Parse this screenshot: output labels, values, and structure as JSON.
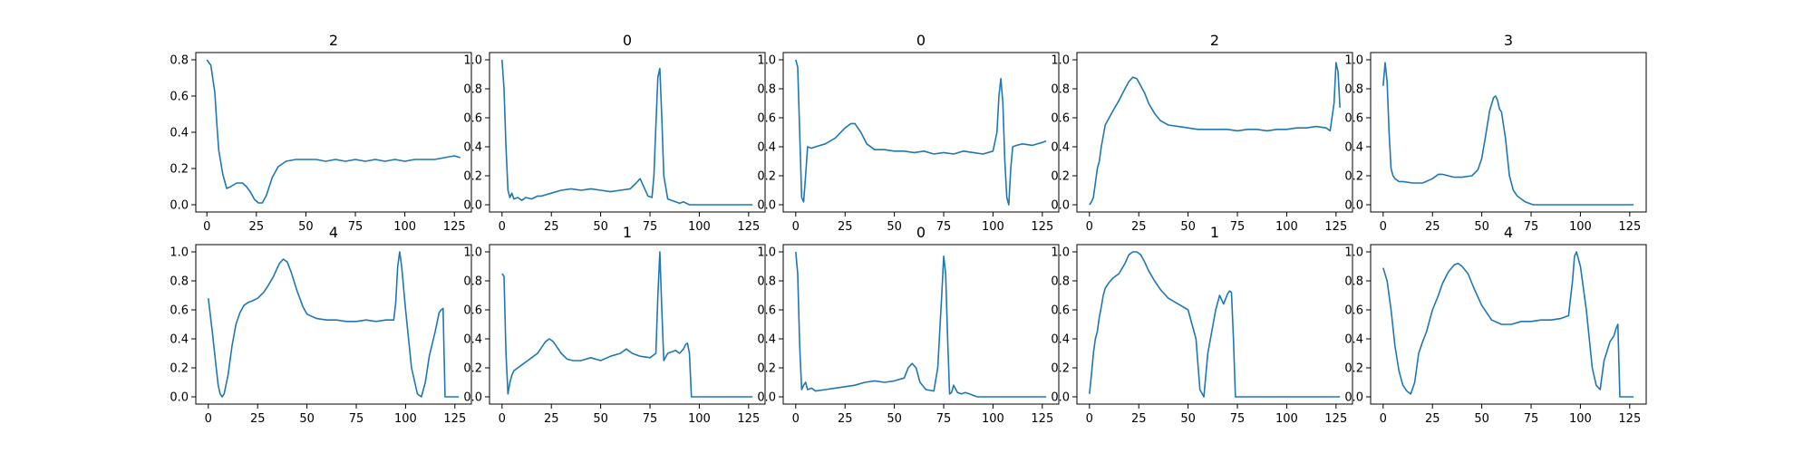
{
  "colors": {
    "line": "#1f77b4",
    "axes": "#000000",
    "background": "#ffffff"
  },
  "chart_data": [
    {
      "type": "line",
      "title": "2",
      "xlim": [
        -5.6,
        133.6
      ],
      "ylim": [
        -0.04,
        0.84
      ],
      "xticks": [
        0,
        25,
        50,
        75,
        100,
        125
      ],
      "yticks": [
        0.0,
        0.2,
        0.4,
        0.6,
        0.8
      ],
      "grid": false,
      "x": [
        0,
        2,
        4,
        5,
        6,
        8,
        10,
        12,
        15,
        18,
        20,
        22,
        24,
        26,
        28,
        30,
        33,
        36,
        40,
        45,
        50,
        55,
        60,
        65,
        70,
        75,
        80,
        85,
        90,
        95,
        100,
        105,
        110,
        115,
        120,
        125,
        128
      ],
      "y": [
        0.8,
        0.77,
        0.62,
        0.45,
        0.3,
        0.17,
        0.09,
        0.1,
        0.12,
        0.12,
        0.1,
        0.07,
        0.03,
        0.01,
        0.01,
        0.05,
        0.15,
        0.21,
        0.24,
        0.25,
        0.25,
        0.25,
        0.24,
        0.25,
        0.24,
        0.25,
        0.24,
        0.25,
        0.24,
        0.25,
        0.24,
        0.25,
        0.25,
        0.25,
        0.26,
        0.27,
        0.26
      ]
    },
    {
      "type": "line",
      "title": "0",
      "xlim": [
        -6.35,
        133.35
      ],
      "ylim": [
        -0.05,
        1.05
      ],
      "xticks": [
        0,
        25,
        50,
        75,
        100,
        125
      ],
      "yticks": [
        0.0,
        0.2,
        0.4,
        0.6,
        0.8,
        1.0
      ],
      "grid": false,
      "x": [
        0,
        1,
        2,
        3,
        4,
        5,
        6,
        8,
        10,
        12,
        15,
        18,
        20,
        25,
        30,
        35,
        40,
        45,
        50,
        55,
        60,
        65,
        68,
        70,
        72,
        74,
        76,
        77,
        78,
        79,
        80,
        81,
        82,
        84,
        86,
        88,
        90,
        92,
        95,
        100,
        110,
        120,
        127
      ],
      "y": [
        1.0,
        0.8,
        0.4,
        0.1,
        0.05,
        0.08,
        0.04,
        0.05,
        0.03,
        0.05,
        0.04,
        0.06,
        0.06,
        0.08,
        0.1,
        0.11,
        0.1,
        0.11,
        0.1,
        0.09,
        0.1,
        0.11,
        0.15,
        0.18,
        0.12,
        0.06,
        0.05,
        0.2,
        0.55,
        0.88,
        0.94,
        0.6,
        0.2,
        0.04,
        0.03,
        0.02,
        0.01,
        0.02,
        0.0,
        0.0,
        0.0,
        0.0,
        0.0
      ]
    },
    {
      "type": "line",
      "title": "0",
      "xlim": [
        -6.35,
        133.35
      ],
      "ylim": [
        -0.05,
        1.05
      ],
      "xticks": [
        0,
        25,
        50,
        75,
        100,
        125
      ],
      "yticks": [
        0.0,
        0.2,
        0.4,
        0.6,
        0.8,
        1.0
      ],
      "grid": false,
      "x": [
        0,
        1,
        2,
        3,
        4,
        5,
        6,
        8,
        10,
        15,
        20,
        25,
        28,
        30,
        33,
        36,
        40,
        45,
        50,
        55,
        60,
        65,
        70,
        75,
        80,
        85,
        90,
        95,
        100,
        102,
        103,
        104,
        105,
        106,
        107,
        108,
        109,
        110,
        112,
        115,
        120,
        125,
        127
      ],
      "y": [
        1.0,
        0.95,
        0.5,
        0.05,
        0.02,
        0.2,
        0.4,
        0.39,
        0.4,
        0.42,
        0.46,
        0.53,
        0.56,
        0.56,
        0.5,
        0.42,
        0.38,
        0.38,
        0.37,
        0.37,
        0.36,
        0.37,
        0.35,
        0.36,
        0.35,
        0.37,
        0.36,
        0.35,
        0.37,
        0.5,
        0.75,
        0.87,
        0.7,
        0.3,
        0.05,
        0.0,
        0.25,
        0.4,
        0.41,
        0.42,
        0.41,
        0.43,
        0.44
      ]
    },
    {
      "type": "line",
      "title": "2",
      "xlim": [
        -6.35,
        133.35
      ],
      "ylim": [
        -0.05,
        1.05
      ],
      "xticks": [
        0,
        25,
        50,
        75,
        100,
        125
      ],
      "yticks": [
        0.0,
        0.2,
        0.4,
        0.6,
        0.8,
        1.0
      ],
      "grid": false,
      "x": [
        0,
        1,
        2,
        3,
        4,
        5,
        6,
        8,
        10,
        12,
        15,
        18,
        20,
        22,
        24,
        26,
        28,
        30,
        33,
        36,
        40,
        45,
        50,
        55,
        60,
        65,
        70,
        75,
        80,
        85,
        90,
        95,
        100,
        105,
        110,
        115,
        120,
        122,
        124,
        125,
        126,
        127
      ],
      "y": [
        0.0,
        0.02,
        0.05,
        0.15,
        0.25,
        0.3,
        0.4,
        0.55,
        0.6,
        0.65,
        0.72,
        0.8,
        0.85,
        0.88,
        0.87,
        0.82,
        0.77,
        0.7,
        0.63,
        0.58,
        0.55,
        0.54,
        0.53,
        0.52,
        0.52,
        0.52,
        0.52,
        0.51,
        0.52,
        0.52,
        0.51,
        0.52,
        0.52,
        0.53,
        0.53,
        0.54,
        0.53,
        0.51,
        0.7,
        0.98,
        0.92,
        0.67
      ]
    },
    {
      "type": "line",
      "title": "3",
      "xlim": [
        -6.35,
        133.35
      ],
      "ylim": [
        -0.05,
        1.05
      ],
      "xticks": [
        0,
        25,
        50,
        75,
        100,
        125
      ],
      "yticks": [
        0.0,
        0.2,
        0.4,
        0.6,
        0.8,
        1.0
      ],
      "grid": false,
      "x": [
        0,
        1,
        2,
        3,
        4,
        5,
        6,
        8,
        10,
        15,
        20,
        25,
        28,
        30,
        33,
        36,
        40,
        45,
        48,
        50,
        52,
        54,
        56,
        57,
        58,
        59,
        60,
        62,
        64,
        66,
        68,
        70,
        72,
        74,
        76,
        80,
        90,
        100,
        110,
        120,
        127
      ],
      "y": [
        0.82,
        0.98,
        0.85,
        0.5,
        0.25,
        0.2,
        0.18,
        0.16,
        0.16,
        0.15,
        0.15,
        0.18,
        0.21,
        0.21,
        0.2,
        0.19,
        0.19,
        0.2,
        0.24,
        0.32,
        0.48,
        0.65,
        0.74,
        0.75,
        0.72,
        0.66,
        0.64,
        0.46,
        0.2,
        0.1,
        0.06,
        0.04,
        0.02,
        0.01,
        0.0,
        0.0,
        0.0,
        0.0,
        0.0,
        0.0,
        0.0
      ]
    },
    {
      "type": "line",
      "title": "4",
      "xlim": [
        -6.35,
        133.35
      ],
      "ylim": [
        -0.05,
        1.05
      ],
      "xticks": [
        0,
        25,
        50,
        75,
        100,
        125
      ],
      "yticks": [
        0.0,
        0.2,
        0.4,
        0.6,
        0.8,
        1.0
      ],
      "grid": false,
      "x": [
        0,
        2,
        4,
        5,
        6,
        7,
        8,
        10,
        12,
        14,
        16,
        18,
        20,
        22,
        25,
        28,
        30,
        33,
        36,
        38,
        40,
        42,
        45,
        48,
        50,
        55,
        60,
        65,
        70,
        75,
        80,
        85,
        90,
        94,
        95,
        96,
        97,
        98,
        100,
        103,
        106,
        108,
        110,
        112,
        115,
        117,
        118,
        119,
        120,
        122,
        125,
        127
      ],
      "y": [
        0.68,
        0.45,
        0.2,
        0.08,
        0.02,
        0.0,
        0.02,
        0.15,
        0.35,
        0.5,
        0.58,
        0.63,
        0.65,
        0.66,
        0.68,
        0.72,
        0.76,
        0.83,
        0.92,
        0.95,
        0.93,
        0.86,
        0.73,
        0.62,
        0.57,
        0.54,
        0.53,
        0.53,
        0.52,
        0.52,
        0.53,
        0.52,
        0.53,
        0.53,
        0.65,
        0.9,
        1.0,
        0.9,
        0.6,
        0.2,
        0.02,
        0.0,
        0.1,
        0.28,
        0.45,
        0.58,
        0.6,
        0.61,
        0.0,
        0.0,
        0.0,
        0.0
      ]
    },
    {
      "type": "line",
      "title": "1",
      "xlim": [
        -6.35,
        133.35
      ],
      "ylim": [
        -0.05,
        1.05
      ],
      "xticks": [
        0,
        25,
        50,
        75,
        100,
        125
      ],
      "yticks": [
        0.0,
        0.2,
        0.4,
        0.6,
        0.8,
        1.0
      ],
      "grid": false,
      "x": [
        0,
        1,
        2,
        3,
        4,
        5,
        6,
        8,
        10,
        12,
        15,
        18,
        20,
        22,
        24,
        26,
        28,
        30,
        33,
        36,
        40,
        45,
        50,
        55,
        60,
        63,
        66,
        70,
        75,
        78,
        79,
        80,
        81,
        82,
        84,
        86,
        88,
        90,
        92,
        93,
        94,
        95,
        96,
        100,
        110,
        120,
        127
      ],
      "y": [
        0.85,
        0.83,
        0.3,
        0.02,
        0.1,
        0.15,
        0.18,
        0.2,
        0.22,
        0.24,
        0.27,
        0.3,
        0.34,
        0.38,
        0.4,
        0.38,
        0.34,
        0.3,
        0.26,
        0.25,
        0.25,
        0.27,
        0.25,
        0.28,
        0.3,
        0.33,
        0.3,
        0.28,
        0.27,
        0.3,
        0.7,
        1.0,
        0.6,
        0.25,
        0.3,
        0.31,
        0.32,
        0.3,
        0.33,
        0.36,
        0.37,
        0.3,
        0.0,
        0.0,
        0.0,
        0.0,
        0.0
      ]
    },
    {
      "type": "line",
      "title": "0",
      "xlim": [
        -6.35,
        133.35
      ],
      "ylim": [
        -0.05,
        1.05
      ],
      "xticks": [
        0,
        25,
        50,
        75,
        100,
        125
      ],
      "yticks": [
        0.0,
        0.2,
        0.4,
        0.6,
        0.8,
        1.0
      ],
      "grid": false,
      "x": [
        0,
        1,
        2,
        3,
        4,
        5,
        6,
        8,
        10,
        15,
        20,
        25,
        30,
        35,
        40,
        45,
        50,
        55,
        57,
        59,
        61,
        63,
        66,
        70,
        72,
        74,
        75,
        76,
        77,
        78,
        79,
        80,
        82,
        84,
        86,
        88,
        90,
        92,
        95,
        100,
        110,
        120,
        127
      ],
      "y": [
        1.0,
        0.85,
        0.35,
        0.05,
        0.08,
        0.1,
        0.05,
        0.06,
        0.04,
        0.05,
        0.06,
        0.07,
        0.08,
        0.1,
        0.11,
        0.1,
        0.11,
        0.13,
        0.2,
        0.23,
        0.2,
        0.1,
        0.05,
        0.04,
        0.2,
        0.7,
        0.97,
        0.85,
        0.4,
        0.02,
        0.03,
        0.08,
        0.03,
        0.02,
        0.03,
        0.02,
        0.01,
        0.0,
        0.0,
        0.0,
        0.0,
        0.0,
        0.0
      ]
    },
    {
      "type": "line",
      "title": "1",
      "xlim": [
        -6.35,
        133.35
      ],
      "ylim": [
        -0.05,
        1.05
      ],
      "xticks": [
        0,
        25,
        50,
        75,
        100,
        125
      ],
      "yticks": [
        0.0,
        0.2,
        0.4,
        0.6,
        0.8,
        1.0
      ],
      "grid": false,
      "x": [
        0,
        1,
        2,
        3,
        4,
        5,
        6,
        7,
        8,
        10,
        12,
        15,
        18,
        20,
        22,
        24,
        26,
        28,
        30,
        33,
        36,
        40,
        45,
        50,
        54,
        56,
        58,
        60,
        62,
        64,
        66,
        68,
        70,
        71,
        72,
        73,
        74,
        75,
        80,
        90,
        100,
        110,
        120,
        127
      ],
      "y": [
        0.02,
        0.15,
        0.3,
        0.4,
        0.45,
        0.55,
        0.62,
        0.7,
        0.75,
        0.79,
        0.82,
        0.85,
        0.92,
        0.98,
        1.0,
        1.0,
        0.98,
        0.93,
        0.87,
        0.8,
        0.74,
        0.68,
        0.64,
        0.6,
        0.4,
        0.05,
        0.0,
        0.3,
        0.45,
        0.6,
        0.7,
        0.64,
        0.71,
        0.73,
        0.72,
        0.4,
        0.0,
        0.0,
        0.0,
        0.0,
        0.0,
        0.0,
        0.0,
        0.0
      ]
    },
    {
      "type": "line",
      "title": "4",
      "xlim": [
        -6.35,
        133.35
      ],
      "ylim": [
        -0.05,
        1.05
      ],
      "xticks": [
        0,
        25,
        50,
        75,
        100,
        125
      ],
      "yticks": [
        0.0,
        0.2,
        0.4,
        0.6,
        0.8,
        1.0
      ],
      "grid": false,
      "x": [
        0,
        2,
        4,
        6,
        8,
        10,
        12,
        14,
        16,
        18,
        20,
        22,
        25,
        28,
        30,
        33,
        36,
        38,
        40,
        43,
        46,
        50,
        55,
        60,
        65,
        70,
        75,
        80,
        85,
        90,
        94,
        96,
        97,
        98,
        100,
        103,
        106,
        108,
        110,
        112,
        115,
        117,
        118,
        119,
        120,
        122,
        125,
        127
      ],
      "y": [
        0.89,
        0.8,
        0.6,
        0.35,
        0.18,
        0.08,
        0.04,
        0.02,
        0.1,
        0.3,
        0.38,
        0.45,
        0.6,
        0.7,
        0.78,
        0.86,
        0.91,
        0.92,
        0.9,
        0.85,
        0.75,
        0.63,
        0.53,
        0.5,
        0.5,
        0.52,
        0.52,
        0.53,
        0.53,
        0.54,
        0.56,
        0.8,
        0.97,
        1.0,
        0.9,
        0.6,
        0.2,
        0.08,
        0.05,
        0.25,
        0.38,
        0.42,
        0.47,
        0.5,
        0.0,
        0.0,
        0.0,
        0.0
      ]
    }
  ]
}
